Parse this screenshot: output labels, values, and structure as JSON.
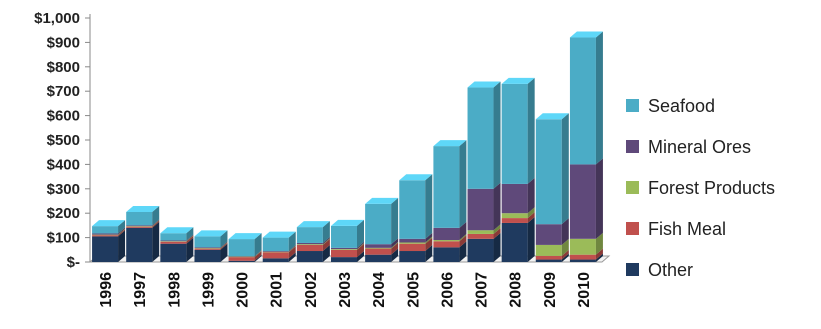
{
  "chart_data": {
    "type": "bar",
    "stacked": true,
    "categories": [
      "1996",
      "1997",
      "1998",
      "1999",
      "2000",
      "2001",
      "2002",
      "2003",
      "2004",
      "2005",
      "2006",
      "2007",
      "2008",
      "2009",
      "2010"
    ],
    "series": [
      {
        "name": "Other",
        "color": "#1F3A5F",
        "values": [
          105,
          140,
          75,
          50,
          5,
          15,
          45,
          20,
          30,
          45,
          60,
          95,
          160,
          10,
          10
        ]
      },
      {
        "name": "Fish Meal",
        "color": "#C0504D",
        "values": [
          5,
          5,
          8,
          5,
          15,
          25,
          25,
          30,
          25,
          30,
          25,
          20,
          20,
          15,
          20
        ]
      },
      {
        "name": "Forest Products",
        "color": "#9BBB59",
        "values": [
          2,
          2,
          2,
          2,
          2,
          2,
          3,
          3,
          3,
          5,
          5,
          15,
          20,
          45,
          65
        ]
      },
      {
        "name": "Mineral Ores",
        "color": "#5F497A",
        "values": [
          5,
          3,
          3,
          3,
          2,
          3,
          5,
          5,
          15,
          15,
          50,
          170,
          120,
          85,
          305
        ]
      },
      {
        "name": "Seafood",
        "color": "#4BACC6",
        "values": [
          30,
          55,
          30,
          45,
          70,
          55,
          65,
          90,
          165,
          240,
          335,
          415,
          410,
          430,
          520
        ]
      }
    ],
    "ylim": [
      0,
      1000
    ],
    "yticks": [
      {
        "value": 0,
        "label": "$-"
      },
      {
        "value": 100,
        "label": "$100"
      },
      {
        "value": 200,
        "label": "$200"
      },
      {
        "value": 300,
        "label": "$300"
      },
      {
        "value": 400,
        "label": "$400"
      },
      {
        "value": 500,
        "label": "$500"
      },
      {
        "value": 600,
        "label": "$600"
      },
      {
        "value": 700,
        "label": "$700"
      },
      {
        "value": 800,
        "label": "$800"
      },
      {
        "value": 900,
        "label": "$900"
      },
      {
        "value": 1000,
        "label": "$1,000"
      }
    ],
    "legend_position": "right",
    "legend_order": [
      "Seafood",
      "Mineral Ores",
      "Forest Products",
      "Fish Meal",
      "Other"
    ],
    "grid": false,
    "style": "3d-column",
    "title": "",
    "xlabel": "",
    "ylabel": ""
  }
}
